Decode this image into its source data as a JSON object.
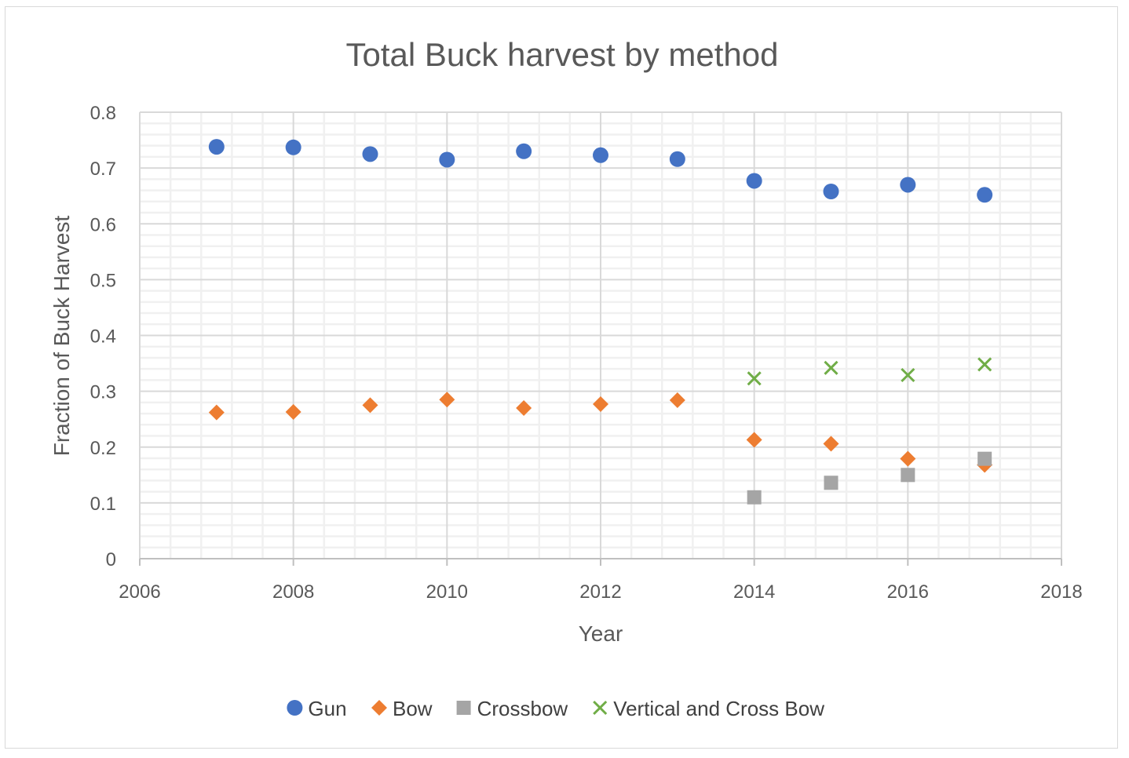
{
  "chart_data": {
    "type": "scatter",
    "title": "Total Buck harvest by method",
    "xlabel": "Year",
    "ylabel": "Fraction of Buck Harvest",
    "xlim": [
      2006,
      2018
    ],
    "ylim": [
      0,
      0.8
    ],
    "x_ticks": [
      "2006",
      "2008",
      "2010",
      "2012",
      "2014",
      "2016",
      "2018"
    ],
    "y_ticks": [
      "0",
      "0.1",
      "0.2",
      "0.3",
      "0.4",
      "0.5",
      "0.6",
      "0.7",
      "0.8"
    ],
    "grid": true,
    "legend_position": "bottom",
    "series": [
      {
        "name": "Gun",
        "marker": "circle",
        "color": "#4472C4",
        "x": [
          2007,
          2008,
          2009,
          2010,
          2011,
          2012,
          2013,
          2014,
          2015,
          2016,
          2017
        ],
        "y": [
          0.738,
          0.737,
          0.725,
          0.715,
          0.73,
          0.723,
          0.716,
          0.677,
          0.658,
          0.67,
          0.652
        ]
      },
      {
        "name": "Bow",
        "marker": "diamond",
        "color": "#ED7D31",
        "x": [
          2007,
          2008,
          2009,
          2010,
          2011,
          2012,
          2013,
          2014,
          2015,
          2016,
          2017
        ],
        "y": [
          0.262,
          0.263,
          0.275,
          0.285,
          0.27,
          0.277,
          0.284,
          0.213,
          0.206,
          0.179,
          0.168
        ]
      },
      {
        "name": "Crossbow",
        "marker": "square",
        "color": "#A5A5A5",
        "x": [
          2014,
          2015,
          2016,
          2017
        ],
        "y": [
          0.11,
          0.136,
          0.15,
          0.179
        ]
      },
      {
        "name": "Vertical and Cross Bow",
        "marker": "x",
        "color": "#70AD47",
        "x": [
          2014,
          2015,
          2016,
          2017
        ],
        "y": [
          0.323,
          0.342,
          0.329,
          0.348
        ]
      }
    ]
  }
}
